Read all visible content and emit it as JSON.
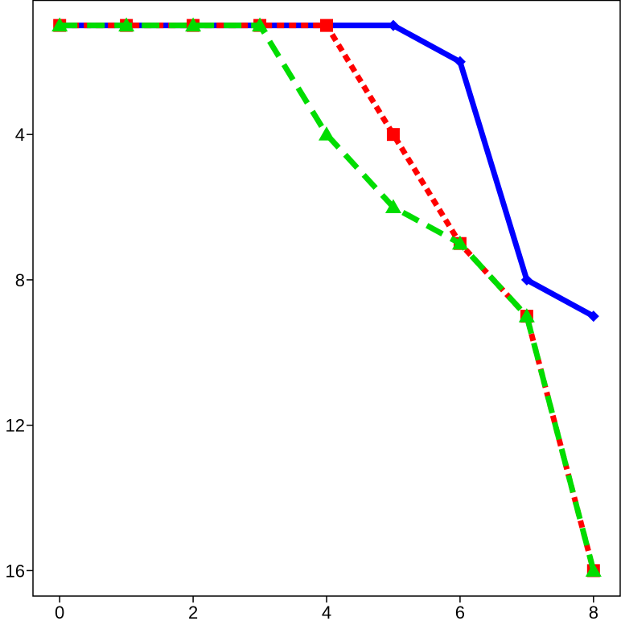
{
  "chart_data": {
    "type": "line",
    "title": "",
    "xlabel": "",
    "ylabel": "",
    "x": [
      0,
      1,
      2,
      3,
      4,
      5,
      6,
      7,
      8
    ],
    "xlim": [
      -0.4,
      8.4
    ],
    "ylim": [
      16.7,
      0.3
    ],
    "y_inverted": true,
    "xticks": [
      0,
      2,
      4,
      6,
      8
    ],
    "xtick_labels": [
      "0",
      "2",
      "4",
      "6",
      "8"
    ],
    "yticks": [
      4,
      8,
      12,
      16
    ],
    "ytick_labels": [
      "4",
      "8",
      "12",
      "16"
    ],
    "grid": false,
    "legend": "none",
    "series": [
      {
        "id": "blue",
        "values": [
          1,
          1,
          1,
          1,
          1,
          1,
          2,
          8,
          9
        ],
        "color": "#0000ff",
        "line_style": "solid",
        "marker": "diamond"
      },
      {
        "id": "red",
        "values": [
          1,
          1,
          1,
          1,
          1,
          4,
          7,
          9,
          16
        ],
        "color": "#ff0000",
        "line_style": "dotted",
        "marker": "square"
      },
      {
        "id": "green",
        "values": [
          1,
          1,
          1,
          1,
          4,
          6,
          7,
          9,
          16
        ],
        "color": "#00dd00",
        "line_style": "dashed",
        "marker": "triangle"
      }
    ]
  }
}
